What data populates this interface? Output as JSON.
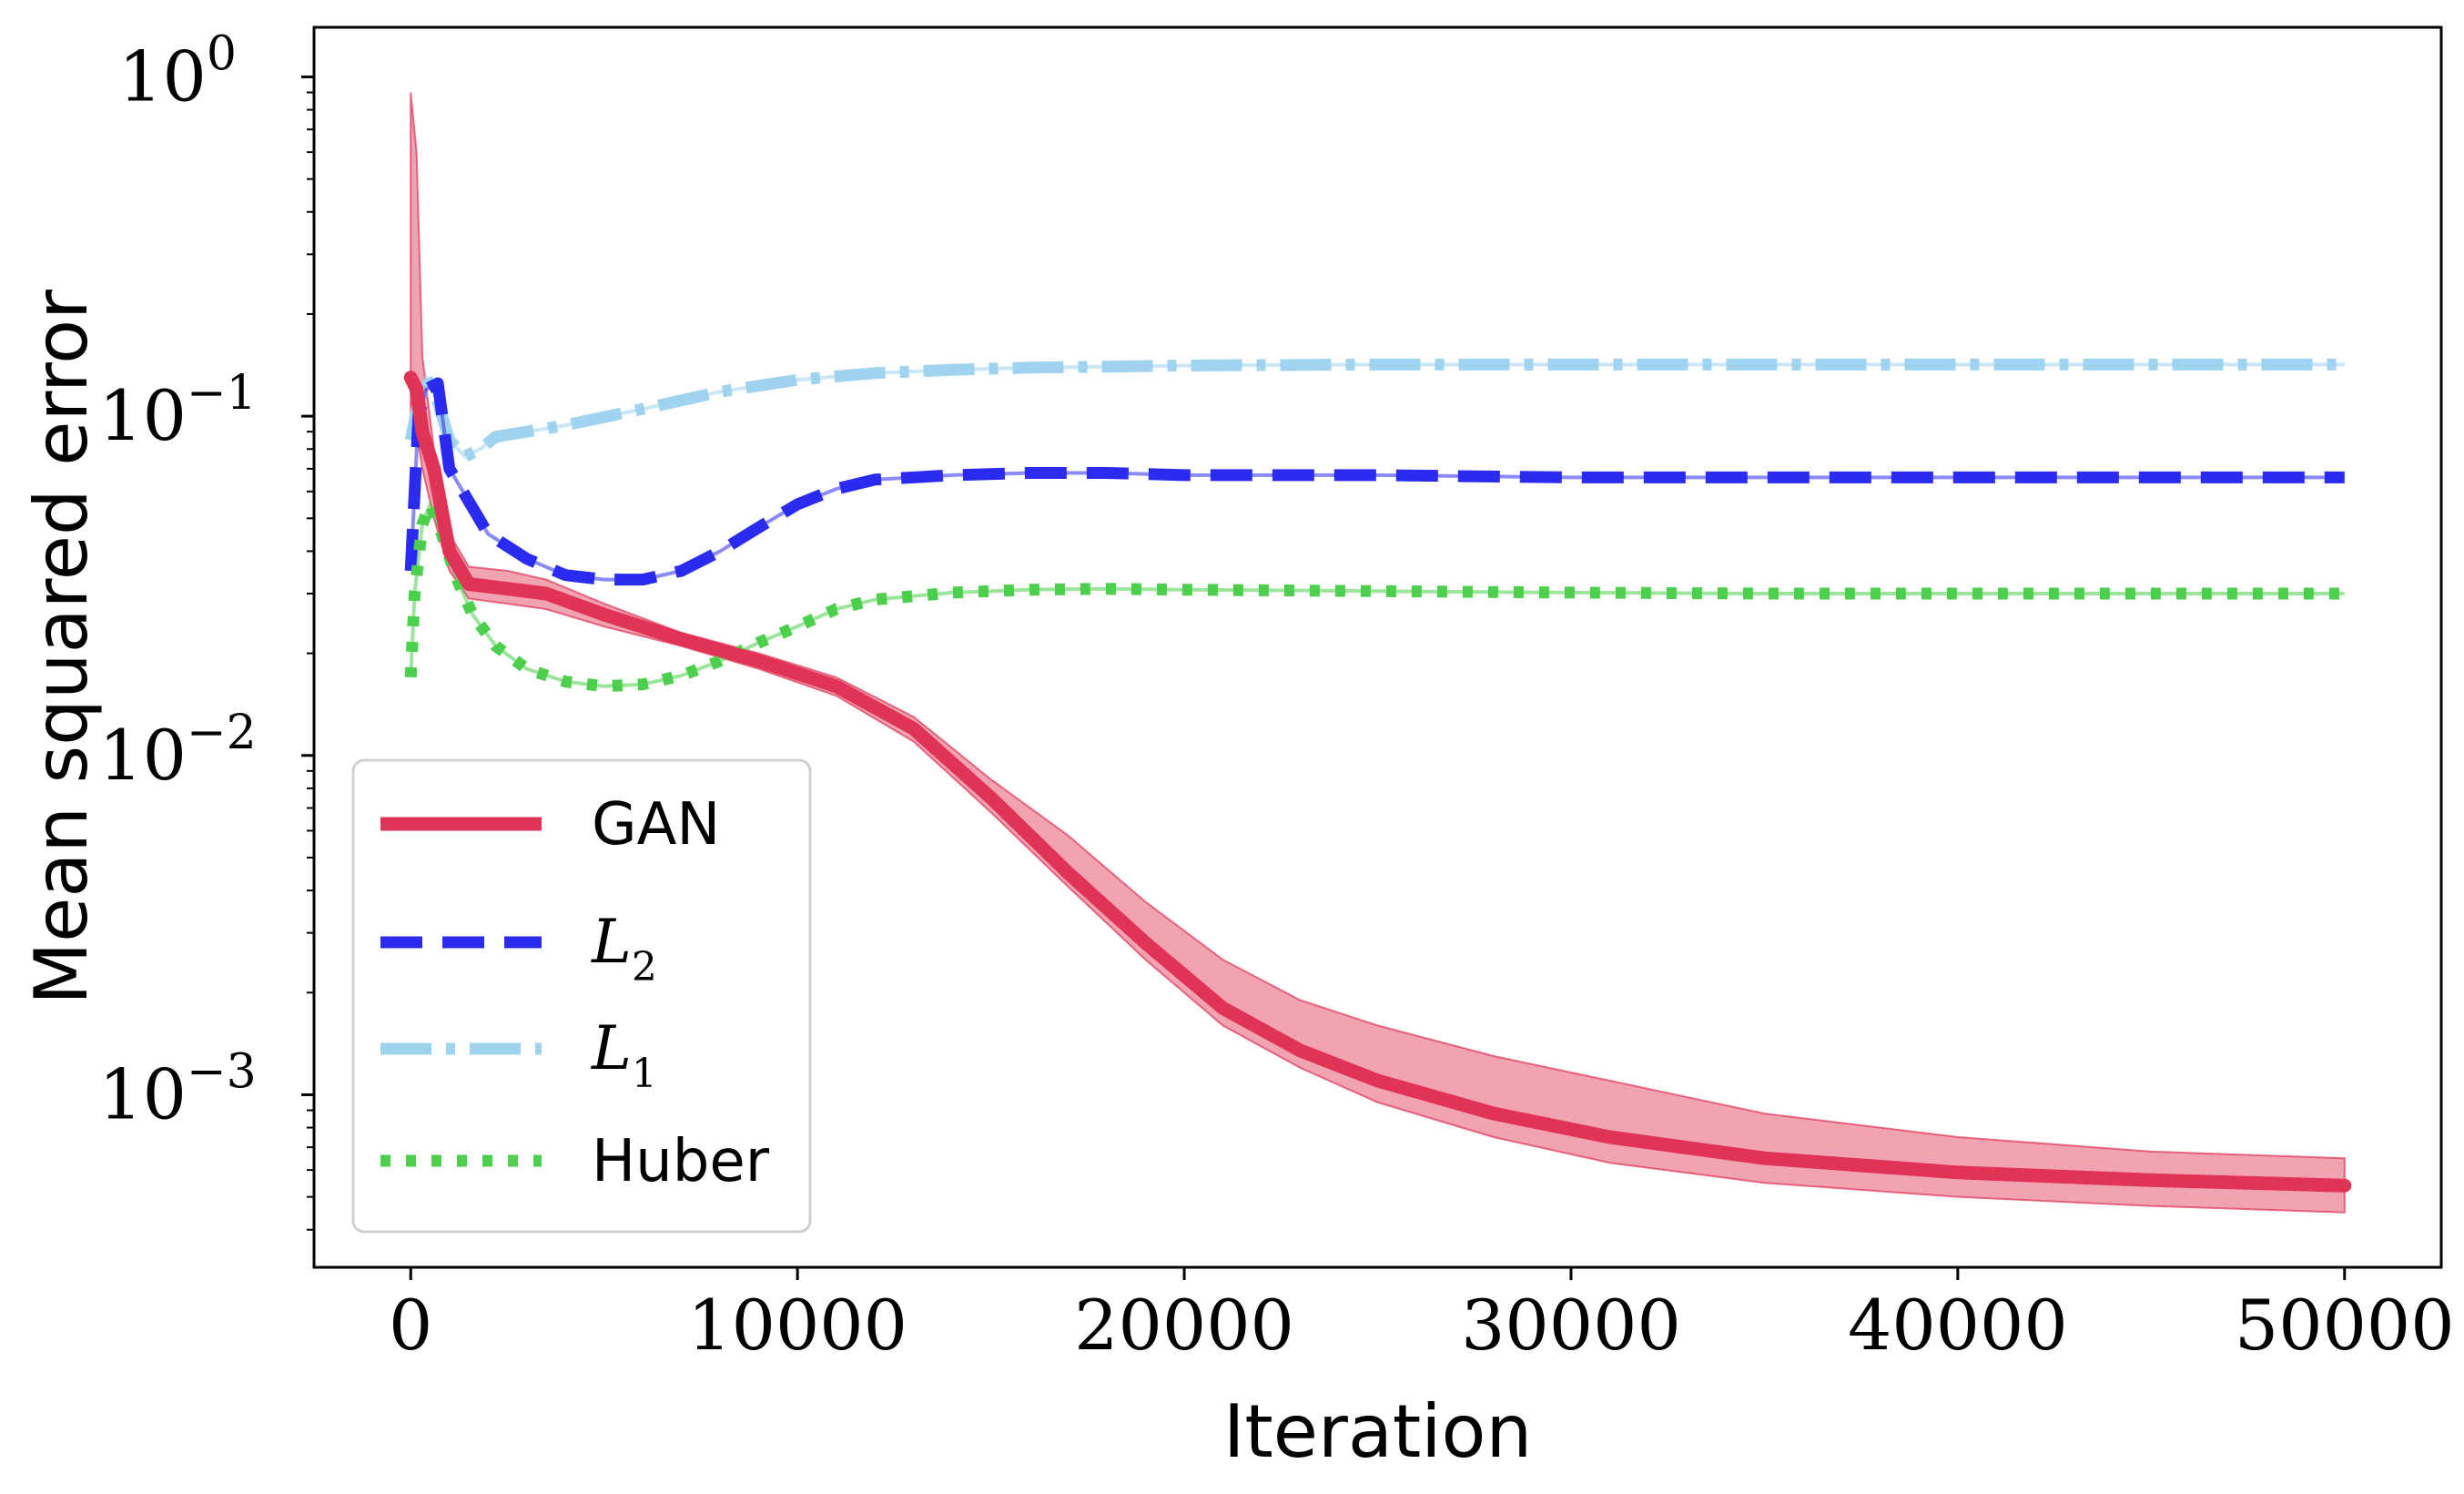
{
  "chart_data": {
    "type": "line",
    "title": "",
    "xlabel": "Iteration",
    "ylabel": "Mean squared error",
    "yscale": "log",
    "xlim": [
      -2500,
      52500
    ],
    "ylim": [
      0.00031,
      1.4
    ],
    "xticks": [
      0,
      10000,
      20000,
      30000,
      40000,
      50000
    ],
    "xtick_labels": [
      "0",
      "10000",
      "20000",
      "30000",
      "40000",
      "50000"
    ],
    "yticks": [
      0.001,
      0.01,
      0.1,
      1
    ],
    "ytick_labels": [
      {
        "base": "10",
        "exp": "−3"
      },
      {
        "base": "10",
        "exp": "−2"
      },
      {
        "base": "10",
        "exp": "−1"
      },
      {
        "base": "10",
        "exp": "0"
      }
    ],
    "legend_position": "lower-left",
    "series": [
      {
        "name": "GAN",
        "legend_label": "GAN",
        "legend_style": "sans",
        "color": "#e03355",
        "style": "solid",
        "x": [
          0,
          150,
          300,
          600,
          1000,
          1500,
          2500,
          3500,
          5000,
          7000,
          9000,
          11000,
          13000,
          15000,
          17000,
          19000,
          21000,
          23000,
          25000,
          28000,
          31000,
          35000,
          40000,
          45000,
          50000
        ],
        "y": [
          0.13,
          0.12,
          0.09,
          0.07,
          0.04,
          0.032,
          0.031,
          0.03,
          0.026,
          0.022,
          0.019,
          0.016,
          0.012,
          0.0075,
          0.0045,
          0.0028,
          0.0018,
          0.00135,
          0.0011,
          0.00088,
          0.00075,
          0.00065,
          0.00059,
          0.00056,
          0.00054
        ],
        "band_upper": [
          0.9,
          0.6,
          0.15,
          0.08,
          0.045,
          0.036,
          0.035,
          0.033,
          0.028,
          0.023,
          0.02,
          0.017,
          0.013,
          0.0085,
          0.0058,
          0.0037,
          0.0025,
          0.0019,
          0.0016,
          0.0013,
          0.0011,
          0.00088,
          0.00075,
          0.00068,
          0.00065
        ],
        "band_lower": [
          0.1,
          0.09,
          0.07,
          0.05,
          0.035,
          0.029,
          0.028,
          0.027,
          0.024,
          0.021,
          0.018,
          0.015,
          0.011,
          0.0068,
          0.0041,
          0.0025,
          0.0016,
          0.0012,
          0.00095,
          0.00075,
          0.00063,
          0.00055,
          0.0005,
          0.00047,
          0.00045
        ]
      },
      {
        "name": "L2",
        "legend_label": "L",
        "legend_sub": "2",
        "legend_style": "math",
        "color": "#2b2bf0",
        "style": "dashed",
        "x": [
          0,
          200,
          400,
          700,
          1000,
          2000,
          3000,
          4000,
          5000,
          6000,
          7000,
          8000,
          9000,
          10000,
          11000,
          12000,
          14000,
          16000,
          18000,
          20000,
          25000,
          30000,
          35000,
          40000,
          45000,
          50000
        ],
        "y": [
          0.035,
          0.1,
          0.12,
          0.125,
          0.07,
          0.045,
          0.038,
          0.034,
          0.033,
          0.033,
          0.035,
          0.04,
          0.047,
          0.055,
          0.061,
          0.065,
          0.067,
          0.068,
          0.068,
          0.067,
          0.067,
          0.066,
          0.066,
          0.066,
          0.066,
          0.066
        ]
      },
      {
        "name": "L1",
        "legend_label": "L",
        "legend_sub": "1",
        "legend_style": "math",
        "color": "#9fd3ef",
        "style": "dashdot",
        "x": [
          0,
          200,
          400,
          700,
          1000,
          1400,
          1800,
          2200,
          3000,
          4000,
          6000,
          8000,
          10000,
          12000,
          14000,
          16000,
          18000,
          20000,
          25000,
          30000,
          35000,
          40000,
          45000,
          50000
        ],
        "y": [
          0.085,
          0.11,
          0.13,
          0.11,
          0.085,
          0.076,
          0.08,
          0.087,
          0.09,
          0.094,
          0.105,
          0.118,
          0.128,
          0.134,
          0.137,
          0.139,
          0.14,
          0.141,
          0.142,
          0.142,
          0.142,
          0.142,
          0.142,
          0.142
        ]
      },
      {
        "name": "Huber",
        "legend_label": "Huber",
        "legend_style": "sans",
        "color": "#4ccf4c",
        "style": "dotted",
        "x": [
          0,
          100,
          300,
          500,
          800,
          1200,
          1600,
          2200,
          3000,
          4000,
          5000,
          6000,
          7000,
          8000,
          9000,
          10000,
          11000,
          12000,
          14000,
          16000,
          18000,
          20000,
          25000,
          30000,
          35000,
          40000,
          45000,
          50000
        ],
        "y": [
          0.017,
          0.03,
          0.048,
          0.055,
          0.045,
          0.033,
          0.026,
          0.021,
          0.018,
          0.0165,
          0.016,
          0.0162,
          0.0172,
          0.019,
          0.0215,
          0.024,
          0.027,
          0.0288,
          0.0302,
          0.0308,
          0.031,
          0.0308,
          0.0305,
          0.0302,
          0.03,
          0.03,
          0.03,
          0.03
        ]
      }
    ]
  }
}
